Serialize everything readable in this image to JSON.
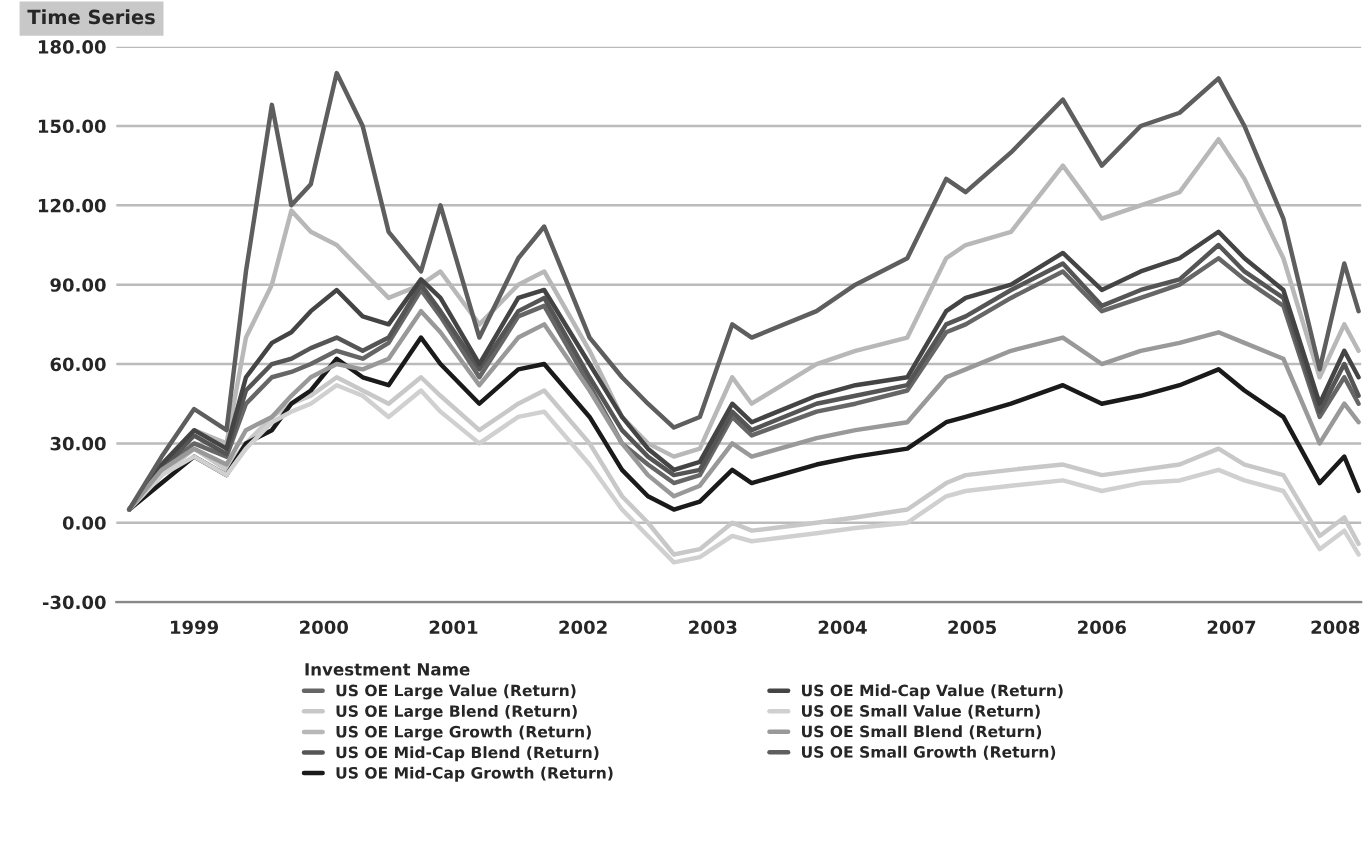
{
  "chart_data": {
    "type": "line",
    "title": "Time Series",
    "legend_title": "Investment Name",
    "x": [
      1999.0,
      1999.25,
      1999.5,
      1999.75,
      1999.9,
      2000.1,
      2000.25,
      2000.4,
      2000.6,
      2000.8,
      2001.0,
      2001.25,
      2001.4,
      2001.7,
      2002.0,
      2002.2,
      2002.55,
      2002.8,
      2003.0,
      2003.2,
      2003.4,
      2003.65,
      2003.8,
      2004.3,
      2004.6,
      2005.0,
      2005.3,
      2005.45,
      2005.8,
      2006.2,
      2006.5,
      2006.8,
      2007.1,
      2007.4,
      2007.6,
      2007.9,
      2008.18,
      2008.37,
      2008.48
    ],
    "xlim": [
      1998.9,
      2008.5
    ],
    "xticks": [
      {
        "value": 1999.5,
        "label": "1999"
      },
      {
        "value": 2000.5,
        "label": "2000"
      },
      {
        "value": 2001.5,
        "label": "2001"
      },
      {
        "value": 2002.5,
        "label": "2002"
      },
      {
        "value": 2003.5,
        "label": "2003"
      },
      {
        "value": 2004.5,
        "label": "2004"
      },
      {
        "value": 2005.5,
        "label": "2005"
      },
      {
        "value": 2006.5,
        "label": "2006"
      },
      {
        "value": 2007.5,
        "label": "2007"
      },
      {
        "value": 2008.3,
        "label": "2008"
      }
    ],
    "ylim": [
      -30,
      180
    ],
    "yticks": [
      {
        "value": -30,
        "label": "-30.00"
      },
      {
        "value": 0,
        "label": "0.00"
      },
      {
        "value": 30,
        "label": "30.00"
      },
      {
        "value": 60,
        "label": "60.00"
      },
      {
        "value": 90,
        "label": "90.00"
      },
      {
        "value": 120,
        "label": "120.00"
      },
      {
        "value": 150,
        "label": "150.00"
      },
      {
        "value": 180,
        "label": "180.00"
      }
    ],
    "grid": "y",
    "legend": "bottom",
    "marker": "none",
    "line_style": "solid",
    "series": [
      {
        "name": "US OE Large Value (Return)",
        "color": "#666666",
        "values": [
          5,
          20,
          30,
          25,
          45,
          55,
          57,
          60,
          65,
          62,
          68,
          88,
          78,
          55,
          78,
          82,
          52,
          30,
          22,
          15,
          18,
          40,
          33,
          42,
          45,
          50,
          72,
          75,
          85,
          95,
          80,
          85,
          90,
          100,
          92,
          82,
          40,
          55,
          45
        ]
      },
      {
        "name": "US OE Large Blend (Return)",
        "color": "#c8c8c8",
        "values": [
          5,
          18,
          28,
          20,
          30,
          40,
          45,
          48,
          55,
          50,
          45,
          55,
          48,
          35,
          45,
          50,
          30,
          10,
          0,
          -12,
          -10,
          0,
          -3,
          0,
          2,
          5,
          15,
          18,
          20,
          22,
          18,
          20,
          22,
          28,
          22,
          18,
          -5,
          2,
          -8
        ]
      },
      {
        "name": "US OE Large Growth (Return)",
        "color": "#b8b8b8",
        "values": [
          5,
          22,
          35,
          30,
          70,
          90,
          118,
          110,
          105,
          95,
          85,
          90,
          95,
          75,
          90,
          95,
          65,
          40,
          30,
          25,
          28,
          55,
          45,
          60,
          65,
          70,
          100,
          105,
          110,
          135,
          115,
          120,
          125,
          145,
          130,
          100,
          55,
          75,
          65
        ]
      },
      {
        "name": "US OE Mid-Cap Blend (Return)",
        "color": "#555555",
        "values": [
          5,
          20,
          33,
          26,
          50,
          60,
          62,
          66,
          70,
          65,
          70,
          90,
          80,
          58,
          80,
          85,
          55,
          35,
          25,
          18,
          20,
          42,
          35,
          45,
          48,
          52,
          75,
          78,
          88,
          98,
          82,
          88,
          92,
          105,
          95,
          85,
          42,
          60,
          48
        ]
      },
      {
        "name": "US OE Mid-Cap Growth (Return)",
        "color": "#1a1a1a",
        "values": [
          5,
          15,
          25,
          18,
          30,
          35,
          45,
          50,
          62,
          55,
          52,
          70,
          60,
          45,
          58,
          60,
          40,
          20,
          10,
          5,
          8,
          20,
          15,
          22,
          25,
          28,
          38,
          40,
          45,
          52,
          45,
          48,
          52,
          58,
          50,
          40,
          15,
          25,
          12
        ]
      },
      {
        "name": "US OE Mid-Cap Value (Return)",
        "color": "#444444",
        "values": [
          5,
          22,
          35,
          28,
          55,
          68,
          72,
          80,
          88,
          78,
          75,
          92,
          85,
          60,
          85,
          88,
          60,
          40,
          28,
          20,
          23,
          45,
          38,
          48,
          52,
          55,
          80,
          85,
          90,
          102,
          88,
          95,
          100,
          110,
          100,
          88,
          45,
          65,
          55
        ]
      },
      {
        "name": "US OE Small Value (Return)",
        "color": "#d0d0d0",
        "values": [
          5,
          18,
          25,
          18,
          28,
          38,
          42,
          45,
          52,
          48,
          40,
          50,
          42,
          30,
          40,
          42,
          22,
          5,
          -5,
          -15,
          -13,
          -5,
          -7,
          -4,
          -2,
          0,
          10,
          12,
          14,
          16,
          12,
          15,
          16,
          20,
          16,
          12,
          -10,
          -3,
          -12
        ]
      },
      {
        "name": "US OE Small Blend (Return)",
        "color": "#999999",
        "values": [
          5,
          20,
          28,
          22,
          35,
          40,
          48,
          55,
          60,
          58,
          62,
          80,
          72,
          52,
          70,
          75,
          50,
          30,
          18,
          10,
          14,
          30,
          25,
          32,
          35,
          38,
          55,
          58,
          65,
          70,
          60,
          65,
          68,
          72,
          68,
          62,
          30,
          45,
          38
        ]
      },
      {
        "name": "US OE Small Growth (Return)",
        "color": "#5e5e5e",
        "values": [
          5,
          25,
          43,
          35,
          95,
          158,
          120,
          128,
          170,
          150,
          110,
          95,
          120,
          70,
          100,
          112,
          70,
          55,
          45,
          36,
          40,
          75,
          70,
          80,
          90,
          100,
          130,
          125,
          140,
          160,
          135,
          150,
          155,
          168,
          150,
          115,
          58,
          98,
          80
        ]
      }
    ]
  }
}
